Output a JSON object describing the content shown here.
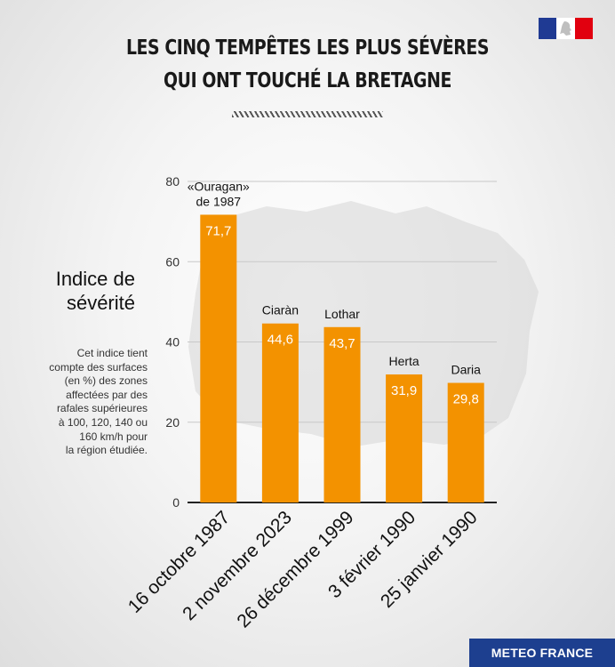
{
  "header": {
    "title_line1": "LES CINQ TEMPÊTES LES PLUS SÉVÈRES",
    "title_line2": "QUI ONT TOUCHÉ LA BRETAGNE"
  },
  "colors": {
    "bar": "#f39200",
    "axis": "#222222",
    "grid": "#c8c8c8",
    "footer": "#1d3f8f"
  },
  "y_axis_title": {
    "line1": "Indice de",
    "line2": "sévérité"
  },
  "description_lines": [
    "Cet indice tient",
    "compte des surfaces",
    "(en %) des zones",
    "affectées par des",
    "rafales supérieures",
    "à 100, 120, 140 ou",
    "160 km/h pour",
    "la région étudiée."
  ],
  "chart_data": {
    "type": "bar",
    "title": "LES CINQ TEMPÊTES LES PLUS SÉVÈRES QUI ONT TOUCHÉ LA BRETAGNE",
    "ylabel": "Indice de sévérité",
    "xlabel": "",
    "ylim": [
      0,
      80
    ],
    "yticks": [
      0,
      20,
      40,
      60,
      80
    ],
    "grid": true,
    "categories": [
      "16 octobre 1987",
      "2 novembre 2023",
      "26 décembre 1999",
      "3 février 1990",
      "25 janvier 1990"
    ],
    "storm_names": [
      [
        "«Ouragan»",
        "de 1987"
      ],
      [
        "Ciaràn"
      ],
      [
        "Lothar"
      ],
      [
        "Herta"
      ],
      [
        "Daria"
      ]
    ],
    "values": [
      71.7,
      44.6,
      43.7,
      31.9,
      29.8
    ],
    "value_labels": [
      "71,7",
      "44,6",
      "43,7",
      "31,9",
      "29,8"
    ]
  },
  "footer": {
    "brand": "METEO FRANCE"
  }
}
